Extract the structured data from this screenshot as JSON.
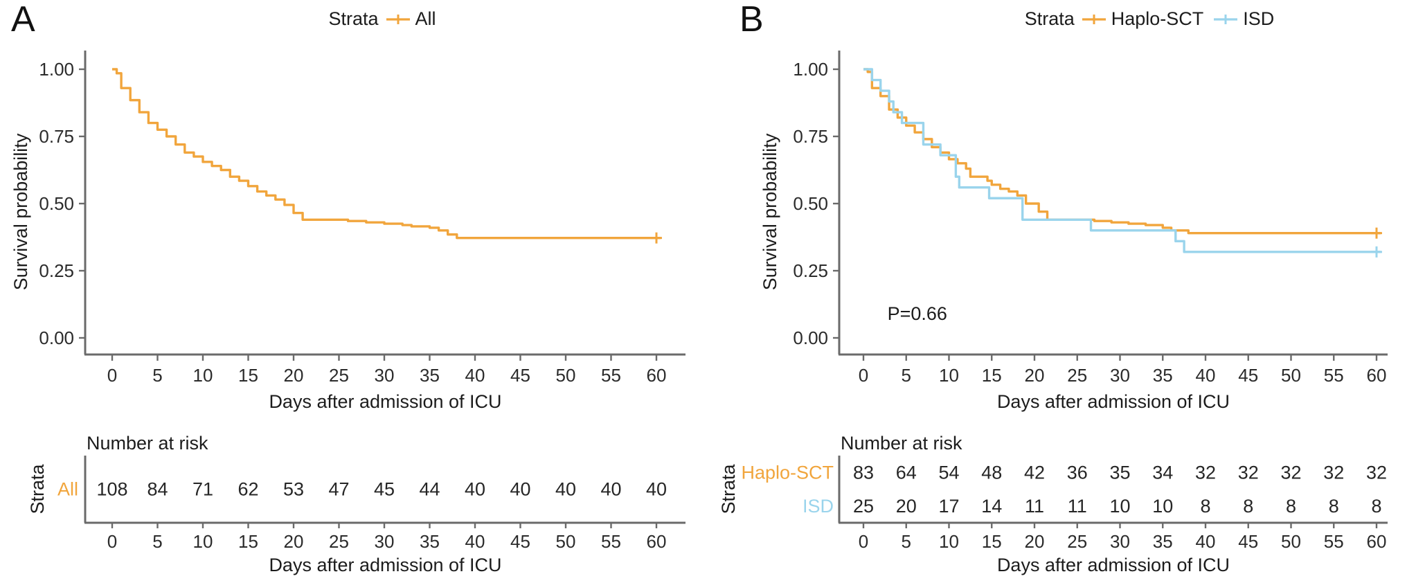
{
  "panels": [
    {
      "label": "A",
      "legend_title": "Strata"
    },
    {
      "label": "B",
      "legend_title": "Strata"
    }
  ],
  "chart_data": [
    {
      "type": "line",
      "subtype": "kaplan-meier-step",
      "title": "",
      "xlabel": "Days after admission of ICU",
      "ylabel": "Survival probability",
      "xlim": [
        0,
        62
      ],
      "ylim": [
        0,
        1
      ],
      "xticks": [
        0,
        5,
        10,
        15,
        20,
        25,
        30,
        35,
        40,
        45,
        50,
        55,
        60
      ],
      "yticks": [
        0,
        0.25,
        0.5,
        0.75,
        1
      ],
      "ytick_labels": [
        "0.00",
        "0.25",
        "0.50",
        "0.75",
        "1.00"
      ],
      "grid": false,
      "legend_position": "top",
      "legend_title": "Strata",
      "annotations": [],
      "series": [
        {
          "name": "All",
          "color": "#F1A53C",
          "steps": [
            [
              0,
              1.0
            ],
            [
              0.5,
              0.985
            ],
            [
              1,
              0.93
            ],
            [
              2,
              0.885
            ],
            [
              3,
              0.84
            ],
            [
              4,
              0.8
            ],
            [
              5,
              0.775
            ],
            [
              6,
              0.75
            ],
            [
              7,
              0.72
            ],
            [
              8,
              0.69
            ],
            [
              9,
              0.675
            ],
            [
              10,
              0.655
            ],
            [
              11,
              0.64
            ],
            [
              12,
              0.625
            ],
            [
              13,
              0.6
            ],
            [
              14,
              0.585
            ],
            [
              15,
              0.565
            ],
            [
              16,
              0.545
            ],
            [
              17,
              0.53
            ],
            [
              18,
              0.515
            ],
            [
              19,
              0.495
            ],
            [
              20,
              0.465
            ],
            [
              21,
              0.44
            ],
            [
              26,
              0.435
            ],
            [
              28,
              0.43
            ],
            [
              30,
              0.425
            ],
            [
              32,
              0.42
            ],
            [
              33,
              0.415
            ],
            [
              35,
              0.41
            ],
            [
              36,
              0.4
            ],
            [
              37,
              0.385
            ],
            [
              38,
              0.372
            ],
            [
              60,
              0.372
            ]
          ],
          "censor_marks": [
            [
              60,
              0.372
            ]
          ]
        }
      ],
      "number_at_risk": {
        "title": "Number at risk",
        "axis_label": "Strata",
        "xlabel": "Days after admission of ICU",
        "timepoints": [
          0,
          5,
          10,
          15,
          20,
          25,
          30,
          35,
          40,
          45,
          50,
          55,
          60
        ],
        "rows": [
          {
            "name": "All",
            "color": "#F1A53C",
            "values": [
              108,
              84,
              71,
              62,
              53,
              47,
              45,
              44,
              40,
              40,
              40,
              40,
              40
            ]
          }
        ]
      }
    },
    {
      "type": "line",
      "subtype": "kaplan-meier-step",
      "title": "",
      "xlabel": "Days after admission of ICU",
      "ylabel": "Survival probability",
      "xlim": [
        0,
        62
      ],
      "ylim": [
        0,
        1
      ],
      "xticks": [
        0,
        5,
        10,
        15,
        20,
        25,
        30,
        35,
        40,
        45,
        50,
        55,
        60
      ],
      "yticks": [
        0,
        0.25,
        0.5,
        0.75,
        1
      ],
      "ytick_labels": [
        "0.00",
        "0.25",
        "0.50",
        "0.75",
        "1.00"
      ],
      "grid": false,
      "legend_position": "top",
      "legend_title": "Strata",
      "annotations": [
        {
          "text": "P=0.66",
          "x": 2.8,
          "y": 0.09
        }
      ],
      "series": [
        {
          "name": "Haplo-SCT",
          "color": "#F1A53C",
          "steps": [
            [
              0,
              1.0
            ],
            [
              0.5,
              0.99
            ],
            [
              1,
              0.93
            ],
            [
              2,
              0.9
            ],
            [
              3,
              0.85
            ],
            [
              4,
              0.82
            ],
            [
              5,
              0.79
            ],
            [
              6,
              0.765
            ],
            [
              7,
              0.74
            ],
            [
              8,
              0.71
            ],
            [
              9,
              0.69
            ],
            [
              10,
              0.665
            ],
            [
              11,
              0.65
            ],
            [
              12,
              0.63
            ],
            [
              12.5,
              0.6
            ],
            [
              14.5,
              0.585
            ],
            [
              15,
              0.57
            ],
            [
              16,
              0.555
            ],
            [
              17,
              0.545
            ],
            [
              18,
              0.53
            ],
            [
              19,
              0.5
            ],
            [
              20.5,
              0.47
            ],
            [
              21.5,
              0.44
            ],
            [
              27,
              0.435
            ],
            [
              29,
              0.43
            ],
            [
              31,
              0.425
            ],
            [
              33,
              0.42
            ],
            [
              35,
              0.41
            ],
            [
              36,
              0.4
            ],
            [
              38,
              0.39
            ],
            [
              60,
              0.39
            ]
          ],
          "censor_marks": [
            [
              60,
              0.39
            ]
          ]
        },
        {
          "name": "ISD",
          "color": "#9AD4EC",
          "steps": [
            [
              0,
              1.0
            ],
            [
              1,
              0.96
            ],
            [
              2,
              0.92
            ],
            [
              3,
              0.88
            ],
            [
              3.5,
              0.84
            ],
            [
              4.5,
              0.8
            ],
            [
              7,
              0.72
            ],
            [
              9,
              0.68
            ],
            [
              10.8,
              0.6
            ],
            [
              11.2,
              0.56
            ],
            [
              14.7,
              0.52
            ],
            [
              18.6,
              0.44
            ],
            [
              26.6,
              0.4
            ],
            [
              36.5,
              0.36
            ],
            [
              37.5,
              0.32
            ],
            [
              60,
              0.32
            ]
          ],
          "censor_marks": [
            [
              60,
              0.32
            ]
          ]
        }
      ],
      "number_at_risk": {
        "title": "Number at risk",
        "axis_label": "Strata",
        "xlabel": "Days after admission of ICU",
        "timepoints": [
          0,
          5,
          10,
          15,
          20,
          25,
          30,
          35,
          40,
          45,
          50,
          55,
          60
        ],
        "rows": [
          {
            "name": "Haplo-SCT",
            "color": "#F1A53C",
            "values": [
              83,
              64,
              54,
              48,
              42,
              36,
              35,
              34,
              32,
              32,
              32,
              32,
              32
            ]
          },
          {
            "name": "ISD",
            "color": "#9AD4EC",
            "values": [
              25,
              20,
              17,
              14,
              11,
              11,
              10,
              10,
              8,
              8,
              8,
              8,
              8
            ]
          }
        ]
      }
    }
  ]
}
